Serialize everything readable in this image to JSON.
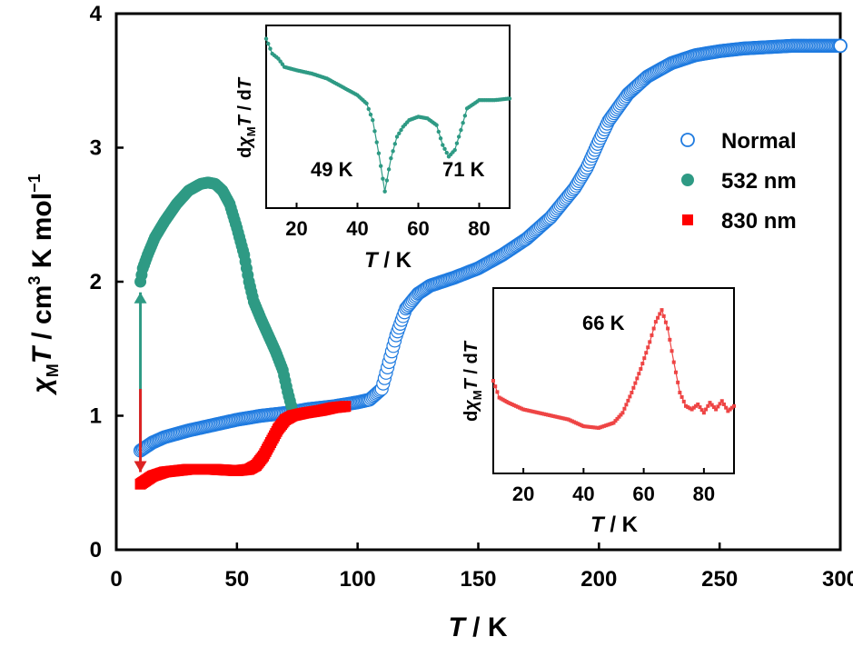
{
  "chart_data": [
    {
      "id": "main",
      "type": "scatter",
      "x_title_var": "T",
      "x_title_unit": " / K",
      "y_title": {
        "chi": "χ",
        "sub": "M",
        "var": "T",
        "unit": " / cm",
        "sup": "3",
        "unit2": " K mol",
        "sup2": "−1"
      },
      "xlim": [
        0,
        300
      ],
      "ylim": [
        0,
        4
      ],
      "x_ticks": [
        0,
        50,
        100,
        150,
        200,
        250,
        300
      ],
      "y_ticks": [
        0,
        1,
        2,
        3,
        4
      ],
      "grid": false,
      "legend_position": "right",
      "series": [
        {
          "name": "Normal",
          "marker": "open-circle",
          "color": "#1f7be0",
          "points": [
            [
              10,
              0.74
            ],
            [
              15,
              0.8
            ],
            [
              20,
              0.84
            ],
            [
              30,
              0.89
            ],
            [
              40,
              0.93
            ],
            [
              50,
              0.97
            ],
            [
              60,
              1.0
            ],
            [
              70,
              1.02
            ],
            [
              80,
              1.05
            ],
            [
              90,
              1.07
            ],
            [
              100,
              1.1
            ],
            [
              105,
              1.12
            ],
            [
              110,
              1.2
            ],
            [
              113,
              1.4
            ],
            [
              116,
              1.6
            ],
            [
              120,
              1.8
            ],
            [
              125,
              1.91
            ],
            [
              130,
              1.97
            ],
            [
              140,
              2.03
            ],
            [
              150,
              2.1
            ],
            [
              160,
              2.2
            ],
            [
              170,
              2.32
            ],
            [
              180,
              2.48
            ],
            [
              190,
              2.7
            ],
            [
              195,
              2.85
            ],
            [
              200,
              3.05
            ],
            [
              204,
              3.2
            ],
            [
              208,
              3.3
            ],
            [
              212,
              3.4
            ],
            [
              220,
              3.53
            ],
            [
              230,
              3.63
            ],
            [
              240,
              3.69
            ],
            [
              250,
              3.72
            ],
            [
              260,
              3.74
            ],
            [
              270,
              3.75
            ],
            [
              280,
              3.76
            ],
            [
              290,
              3.76
            ],
            [
              300,
              3.76
            ]
          ]
        },
        {
          "name": "532 nm",
          "marker": "filled-circle",
          "color": "#2e9a84",
          "points": [
            [
              10,
              2.0
            ],
            [
              11,
              2.1
            ],
            [
              13,
              2.2
            ],
            [
              16,
              2.33
            ],
            [
              20,
              2.45
            ],
            [
              25,
              2.58
            ],
            [
              30,
              2.68
            ],
            [
              35,
              2.73
            ],
            [
              38,
              2.74
            ],
            [
              41,
              2.73
            ],
            [
              44,
              2.68
            ],
            [
              47,
              2.58
            ],
            [
              50,
              2.4
            ],
            [
              53,
              2.2
            ],
            [
              55,
              2.0
            ],
            [
              57,
              1.85
            ],
            [
              60,
              1.72
            ],
            [
              63,
              1.6
            ],
            [
              66,
              1.48
            ],
            [
              69,
              1.34
            ],
            [
              71,
              1.18
            ],
            [
              73,
              1.04
            ]
          ]
        },
        {
          "name": "830 nm",
          "marker": "filled-square",
          "color": "#ff0000",
          "points": [
            [
              10,
              0.49
            ],
            [
              15,
              0.55
            ],
            [
              20,
              0.58
            ],
            [
              30,
              0.6
            ],
            [
              40,
              0.6
            ],
            [
              50,
              0.59
            ],
            [
              55,
              0.6
            ],
            [
              58,
              0.63
            ],
            [
              61,
              0.7
            ],
            [
              64,
              0.8
            ],
            [
              67,
              0.9
            ],
            [
              70,
              0.97
            ],
            [
              73,
              1.0
            ],
            [
              78,
              1.02
            ],
            [
              85,
              1.04
            ],
            [
              90,
              1.06
            ],
            [
              95,
              1.07
            ]
          ]
        }
      ],
      "arrows": [
        {
          "from": [
            10,
            0.73
          ],
          "to": [
            10,
            1.92
          ],
          "color": "#2e9a84"
        },
        {
          "from": [
            10,
            1.2
          ],
          "to": [
            10,
            0.58
          ],
          "color": "#dd2222"
        }
      ]
    },
    {
      "id": "inset_532",
      "type": "line",
      "xlabel_var": "T",
      "xlabel_unit": " / K",
      "ylabel": "dχMT / dT",
      "ylabel_parts": {
        "d": "d",
        "chi": "χ",
        "sub": "M",
        "var": "T",
        "mid": " / d",
        "var2": "T"
      },
      "xlim": [
        10,
        90
      ],
      "x_ticks": [
        20,
        40,
        60,
        80
      ],
      "y_ticks": [],
      "color": "#2e9a84",
      "annotations": [
        "49 K",
        "71 K"
      ],
      "points": [
        [
          10,
          0.97
        ],
        [
          12,
          0.88
        ],
        [
          14,
          0.85
        ],
        [
          16,
          0.8
        ],
        [
          20,
          0.78
        ],
        [
          25,
          0.76
        ],
        [
          30,
          0.73
        ],
        [
          35,
          0.68
        ],
        [
          40,
          0.63
        ],
        [
          43,
          0.58
        ],
        [
          45,
          0.48
        ],
        [
          47,
          0.28
        ],
        [
          49,
          0.05
        ],
        [
          51,
          0.25
        ],
        [
          53,
          0.38
        ],
        [
          55,
          0.44
        ],
        [
          57,
          0.48
        ],
        [
          60,
          0.5
        ],
        [
          63,
          0.49
        ],
        [
          66,
          0.45
        ],
        [
          68,
          0.33
        ],
        [
          70,
          0.26
        ],
        [
          72,
          0.3
        ],
        [
          74,
          0.42
        ],
        [
          76,
          0.55
        ],
        [
          80,
          0.6
        ],
        [
          85,
          0.6
        ],
        [
          90,
          0.61
        ]
      ]
    },
    {
      "id": "inset_830",
      "type": "line",
      "xlabel_var": "T",
      "xlabel_unit": " / K",
      "ylabel": "dχMT / dT",
      "ylabel_parts": {
        "d": "d",
        "chi": "χ",
        "sub": "M",
        "var": "T",
        "mid": " / d",
        "var2": "T"
      },
      "xlim": [
        10,
        90
      ],
      "x_ticks": [
        20,
        40,
        60,
        80
      ],
      "y_ticks": [],
      "color": "#ee4444",
      "annotations": [
        "66 K"
      ],
      "points": [
        [
          10,
          0.55
        ],
        [
          12,
          0.45
        ],
        [
          15,
          0.42
        ],
        [
          20,
          0.38
        ],
        [
          25,
          0.36
        ],
        [
          30,
          0.34
        ],
        [
          35,
          0.32
        ],
        [
          40,
          0.28
        ],
        [
          45,
          0.27
        ],
        [
          50,
          0.3
        ],
        [
          53,
          0.36
        ],
        [
          56,
          0.48
        ],
        [
          59,
          0.62
        ],
        [
          62,
          0.78
        ],
        [
          64,
          0.9
        ],
        [
          66,
          0.97
        ],
        [
          68,
          0.86
        ],
        [
          70,
          0.66
        ],
        [
          72,
          0.48
        ],
        [
          74,
          0.4
        ],
        [
          76,
          0.38
        ],
        [
          78,
          0.41
        ],
        [
          80,
          0.36
        ],
        [
          82,
          0.42
        ],
        [
          84,
          0.38
        ],
        [
          86,
          0.43
        ],
        [
          88,
          0.37
        ],
        [
          90,
          0.4
        ]
      ]
    }
  ]
}
